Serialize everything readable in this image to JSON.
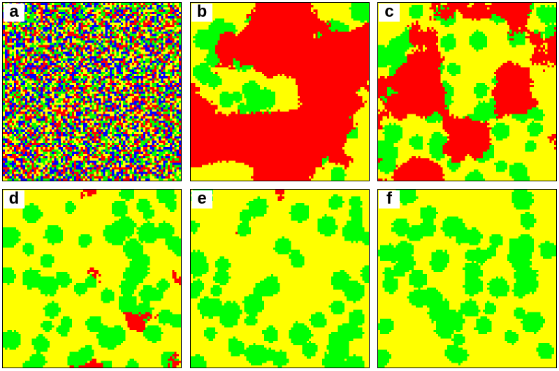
{
  "figure": {
    "panels": [
      {
        "label": "a"
      },
      {
        "label": "b"
      },
      {
        "label": "c"
      },
      {
        "label": "d"
      },
      {
        "label": "e"
      },
      {
        "label": "f"
      }
    ],
    "colors": {
      "red": "#ff0000",
      "green": "#00ff00",
      "yellow": "#ffff00",
      "blue": "#0000ff"
    }
  }
}
